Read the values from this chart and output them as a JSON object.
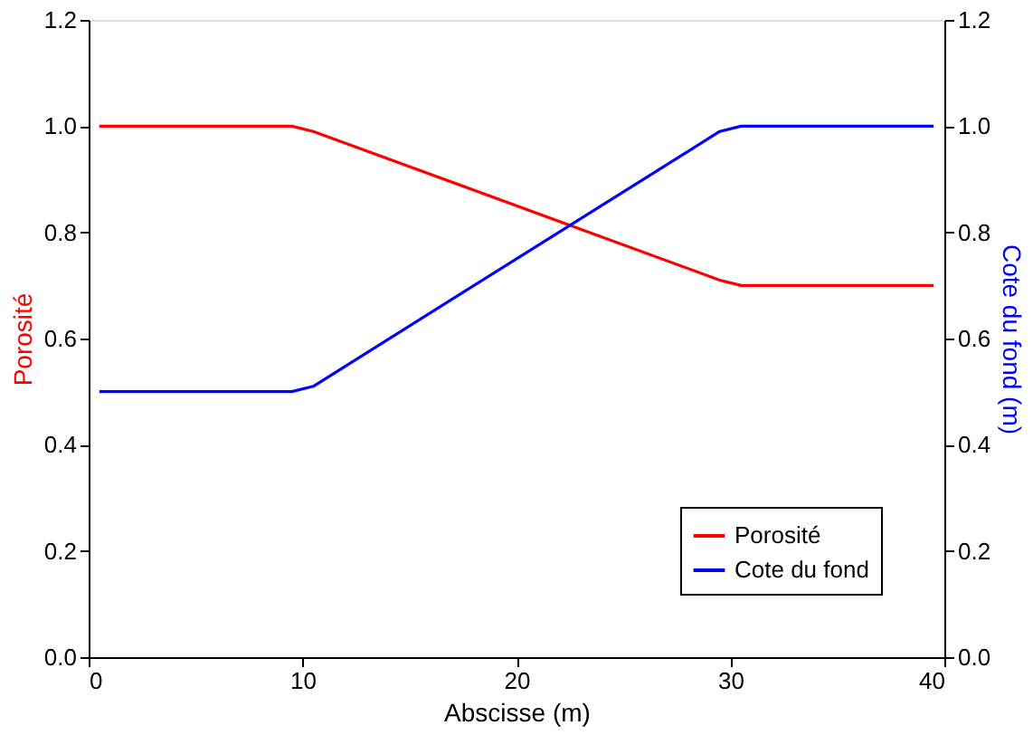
{
  "chart_data": {
    "type": "line",
    "xlabel": "Abscisse (m)",
    "ylabel": "Porosité",
    "y2label": "Cote du fond (m)",
    "xlim": [
      0,
      40
    ],
    "xticks": [
      0,
      10,
      20,
      30,
      40
    ],
    "ylim": [
      0,
      1.2
    ],
    "yticks": [
      {
        "value": 0,
        "label": "0.0"
      },
      {
        "value": 0.2,
        "label": "0.2"
      },
      {
        "value": 0.4,
        "label": "0.4"
      },
      {
        "value": 0.6,
        "label": "0.6"
      },
      {
        "value": 0.8,
        "label": "0.8"
      },
      {
        "value": 1,
        "label": "1.0"
      },
      {
        "value": 1.2,
        "label": "1.2"
      }
    ],
    "y2lim": [
      0,
      1.2
    ],
    "y2ticks": [
      {
        "value": 0,
        "label": "0.0"
      },
      {
        "value": 0.2,
        "label": "0.2"
      },
      {
        "value": 0.4,
        "label": "0.4"
      },
      {
        "value": 0.6,
        "label": "0.6"
      },
      {
        "value": 0.8,
        "label": "0.8"
      },
      {
        "value": 1,
        "label": "1.0"
      },
      {
        "value": 1.2,
        "label": "1.2"
      }
    ],
    "grid": false,
    "legend": "bottom right",
    "marker": "none",
    "line_style": "solid",
    "series": [
      {
        "name": "Porosité",
        "color": "#ff0000",
        "x": [
          0.5,
          9.5,
          10.5,
          29.5,
          30.5,
          39.5
        ],
        "values": [
          1.0,
          1.0,
          0.99,
          0.71,
          0.7,
          0.7
        ]
      },
      {
        "name": "Cote du fond",
        "color": "#0000ff",
        "axis": "y2",
        "x": [
          0.5,
          9.5,
          10.5,
          29.5,
          30.5,
          39.5
        ],
        "values": [
          0.5,
          0.5,
          0.51,
          0.99,
          1.0,
          1.0
        ]
      }
    ]
  }
}
